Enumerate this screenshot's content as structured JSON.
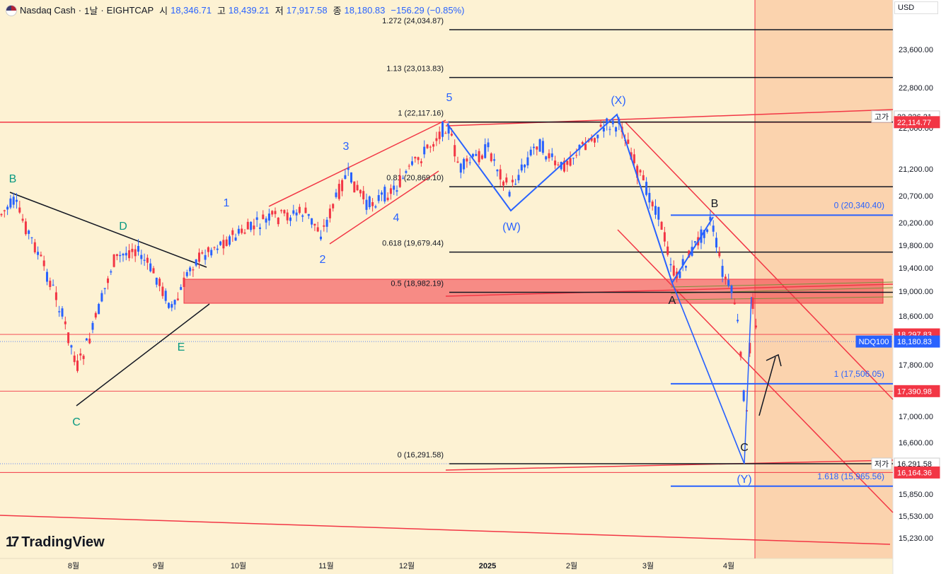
{
  "header": {
    "symbol": "Nasdaq Cash",
    "interval": "1날",
    "broker": "EIGHTCAP",
    "open_label": "시",
    "open": "18,346.71",
    "high_label": "고",
    "high": "18,439.21",
    "low_label": "저",
    "low": "17,917.58",
    "close_label": "종",
    "close": "18,180.83",
    "change": "−156.29 (−0.85%)"
  },
  "currency": "USD",
  "logo_text": "TradingView",
  "chart_data": {
    "type": "candlestick",
    "y_ticks": [
      23600,
      22800,
      22000,
      21200,
      20700,
      20200,
      19800,
      19400,
      19000,
      18600,
      17800,
      17000,
      16600,
      15850,
      15530,
      15230
    ],
    "x_ticks": [
      "8월",
      "9월",
      "10월",
      "11월",
      "12월",
      "2025",
      "2월",
      "3월",
      "4월"
    ],
    "price_labels": [
      {
        "text": "22,226.21",
        "tag": "고가",
        "value": 22226.21,
        "style": "white"
      },
      {
        "text": "22,114.77",
        "value": 22114.77,
        "style": "red"
      },
      {
        "text": "18,297.83",
        "value": 18297.83,
        "style": "red"
      },
      {
        "text": "18,180.83",
        "tag": "NDQ100",
        "value": 18180.83,
        "style": "blue"
      },
      {
        "text": "17,390.98",
        "value": 17390.98,
        "style": "red"
      },
      {
        "text": "16,291.58",
        "tag": "저가",
        "value": 16291.58,
        "style": "white"
      },
      {
        "text": "16,164.36",
        "value": 16164.36,
        "style": "red"
      }
    ],
    "fib_levels": [
      {
        "label": "1.272 (24,034.87)",
        "value": 24034.87
      },
      {
        "label": "1.13 (23,013.83)",
        "value": 23013.83
      },
      {
        "label": "1 (22,117.16)",
        "value": 22117.16
      },
      {
        "label": "0.81 (20,869.10)",
        "value": 20869.1
      },
      {
        "label": "0.618 (19,679.44)",
        "value": 19679.44
      },
      {
        "label": "0.5 (18,982.19)",
        "value": 18982.19
      },
      {
        "label": "0 (16,291.58)",
        "value": 16291.58
      }
    ],
    "blue_levels": [
      {
        "label": "0 (20,340.40)",
        "value": 20340.4
      },
      {
        "label": "1 (17,506.05)",
        "value": 17506.05
      },
      {
        "label": "1.618 (15,965.56)",
        "value": 15965.56
      }
    ],
    "wave_labels": [
      {
        "text": "B",
        "color": "#089981"
      },
      {
        "text": "D",
        "color": "#089981"
      },
      {
        "text": "E",
        "color": "#089981"
      },
      {
        "text": "C",
        "color": "#089981"
      },
      {
        "text": "1",
        "color": "#2962ff"
      },
      {
        "text": "2",
        "color": "#2962ff"
      },
      {
        "text": "3",
        "color": "#2962ff"
      },
      {
        "text": "4",
        "color": "#2962ff"
      },
      {
        "text": "5",
        "color": "#2962ff"
      },
      {
        "text": "(W)",
        "color": "#2962ff"
      },
      {
        "text": "(X)",
        "color": "#2962ff"
      },
      {
        "text": "(Y)",
        "color": "#2962ff"
      },
      {
        "text": "A",
        "color": "#131722"
      },
      {
        "text": "B",
        "color": "#131722"
      },
      {
        "text": "C",
        "color": "#131722"
      }
    ]
  }
}
